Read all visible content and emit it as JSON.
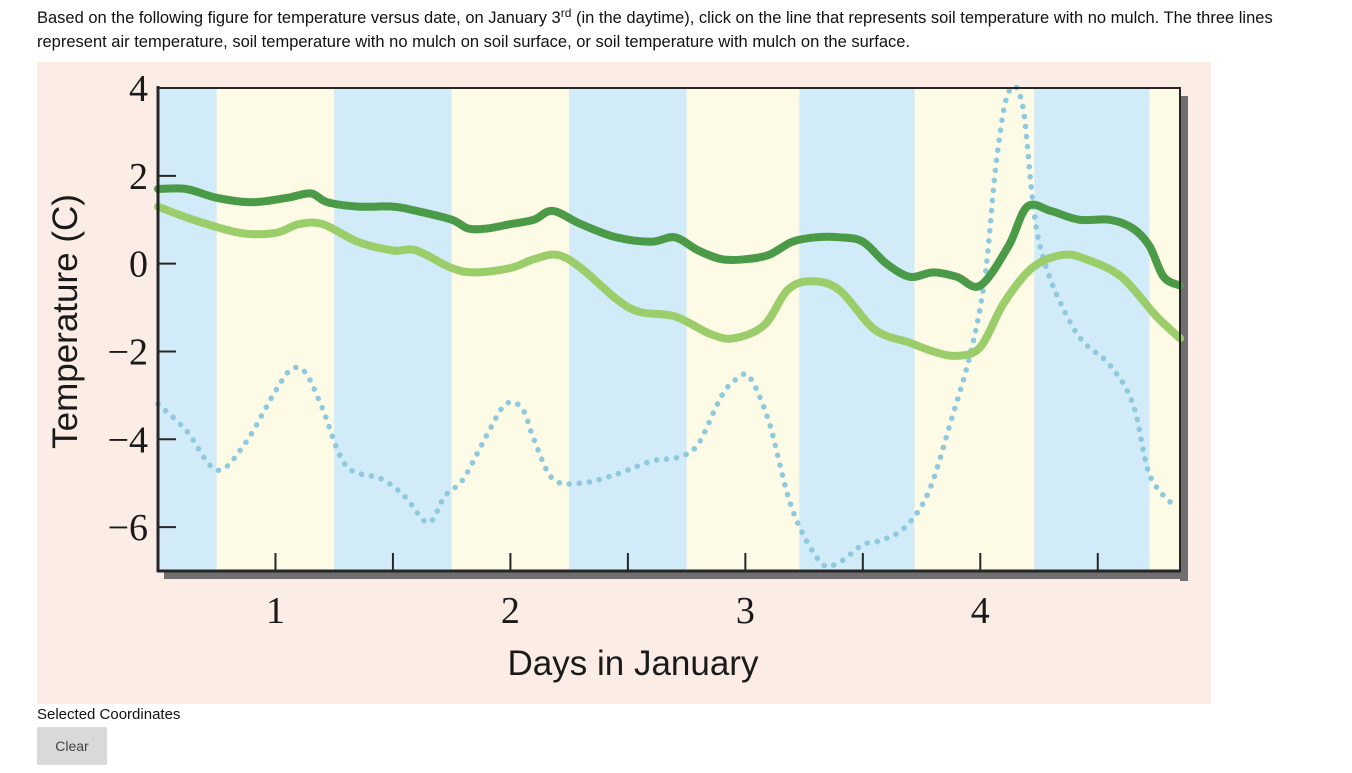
{
  "question": {
    "text_before": "Based on the following figure for temperature versus date, on January 3",
    "superscript": "rd",
    "text_after": " (in the daytime), click on the line that represents soil temperature with no mulch. The three lines represent air temperature, soil temperature with no mulch on soil surface, or soil temperature with mulch on the surface."
  },
  "chart_data": {
    "type": "line",
    "xlabel": "Days in January",
    "ylabel": "Temperature (C)",
    "xlim": [
      0.5,
      4.85
    ],
    "ylim": [
      -7,
      4
    ],
    "x_ticks": [
      1,
      2,
      3,
      4
    ],
    "x_tick_labels": [
      "1",
      "2",
      "3",
      "4"
    ],
    "y_ticks": [
      4,
      2,
      0,
      -2,
      -4,
      -6
    ],
    "y_tick_labels": [
      "4",
      "2",
      "0",
      "−2",
      "−4",
      "−6"
    ],
    "grid": false,
    "day_night_bands": [
      {
        "from": 0.5,
        "to": 0.75,
        "period": "night"
      },
      {
        "from": 0.75,
        "to": 1.25,
        "period": "day"
      },
      {
        "from": 1.25,
        "to": 1.75,
        "period": "night"
      },
      {
        "from": 1.75,
        "to": 2.25,
        "period": "day"
      },
      {
        "from": 2.25,
        "to": 2.75,
        "period": "night"
      },
      {
        "from": 2.75,
        "to": 3.23,
        "period": "day"
      },
      {
        "from": 3.23,
        "to": 3.72,
        "period": "night"
      },
      {
        "from": 3.72,
        "to": 4.23,
        "period": "day"
      },
      {
        "from": 4.23,
        "to": 4.72,
        "period": "night"
      },
      {
        "from": 4.72,
        "to": 4.85,
        "period": "day"
      }
    ],
    "series": [
      {
        "style": "dotted",
        "color": "#8ec9dd",
        "x": [
          0.5,
          0.62,
          0.75,
          0.87,
          1.0,
          1.07,
          1.13,
          1.2,
          1.3,
          1.45,
          1.55,
          1.65,
          1.72,
          1.8,
          1.9,
          1.98,
          2.05,
          2.1,
          2.18,
          2.3,
          2.45,
          2.6,
          2.72,
          2.8,
          2.9,
          2.97,
          3.02,
          3.1,
          3.2,
          3.32,
          3.4,
          3.5,
          3.58,
          3.68,
          3.78,
          3.88,
          3.96,
          4.02,
          4.07,
          4.12,
          4.18,
          4.25,
          4.4,
          4.55,
          4.65,
          4.72,
          4.82
        ],
        "y": [
          -3.2,
          -3.8,
          -4.7,
          -4.1,
          -2.9,
          -2.4,
          -2.5,
          -3.3,
          -4.6,
          -4.9,
          -5.3,
          -5.9,
          -5.3,
          -4.9,
          -3.9,
          -3.2,
          -3.3,
          -4.0,
          -4.9,
          -5.0,
          -4.8,
          -4.5,
          -4.4,
          -4.1,
          -3.0,
          -2.6,
          -2.6,
          -3.6,
          -5.6,
          -6.8,
          -6.8,
          -6.4,
          -6.3,
          -6.0,
          -5.2,
          -3.5,
          -2.0,
          -0.3,
          2.4,
          3.9,
          3.6,
          0.5,
          -1.5,
          -2.3,
          -3.2,
          -4.8,
          -5.5
        ]
      },
      {
        "style": "solid",
        "color": "#9ccd6b",
        "x": [
          0.5,
          0.65,
          0.85,
          1.0,
          1.1,
          1.2,
          1.35,
          1.5,
          1.6,
          1.75,
          1.85,
          2.0,
          2.1,
          2.2,
          2.3,
          2.45,
          2.55,
          2.7,
          2.85,
          2.95,
          3.08,
          3.18,
          3.28,
          3.4,
          3.55,
          3.7,
          3.8,
          3.9,
          4.0,
          4.1,
          4.22,
          4.35,
          4.45,
          4.6,
          4.75,
          4.85
        ],
        "y": [
          1.3,
          1.0,
          0.7,
          0.7,
          0.9,
          0.9,
          0.5,
          0.3,
          0.3,
          -0.1,
          -0.2,
          -0.1,
          0.1,
          0.2,
          -0.1,
          -0.8,
          -1.1,
          -1.2,
          -1.6,
          -1.7,
          -1.4,
          -0.6,
          -0.4,
          -0.6,
          -1.5,
          -1.8,
          -2.0,
          -2.1,
          -1.9,
          -0.9,
          -0.1,
          0.2,
          0.1,
          -0.3,
          -1.2,
          -1.7
        ]
      },
      {
        "style": "solid",
        "color": "#4a9a47",
        "x": [
          0.5,
          0.62,
          0.75,
          0.9,
          1.05,
          1.15,
          1.22,
          1.35,
          1.5,
          1.6,
          1.75,
          1.82,
          1.9,
          2.0,
          2.1,
          2.18,
          2.3,
          2.45,
          2.6,
          2.7,
          2.8,
          2.9,
          3.0,
          3.1,
          3.2,
          3.3,
          3.4,
          3.5,
          3.6,
          3.7,
          3.8,
          3.9,
          4.0,
          4.12,
          4.2,
          4.3,
          4.42,
          4.55,
          4.65,
          4.72,
          4.78,
          4.85
        ],
        "y": [
          1.7,
          1.7,
          1.5,
          1.4,
          1.5,
          1.6,
          1.4,
          1.3,
          1.3,
          1.2,
          1.0,
          0.8,
          0.8,
          0.9,
          1.0,
          1.2,
          0.9,
          0.6,
          0.5,
          0.6,
          0.3,
          0.1,
          0.1,
          0.2,
          0.5,
          0.6,
          0.6,
          0.5,
          0.0,
          -0.3,
          -0.2,
          -0.3,
          -0.5,
          0.4,
          1.3,
          1.2,
          1.0,
          1.0,
          0.8,
          0.4,
          -0.3,
          -0.5
        ]
      }
    ]
  },
  "selection": {
    "label": "Selected Coordinates",
    "clear_label": "Clear"
  },
  "colors": {
    "figure_background": "#fbece5",
    "band_night": "#d2ebf8",
    "band_day": "#fdfae6",
    "axis": "#262626"
  }
}
